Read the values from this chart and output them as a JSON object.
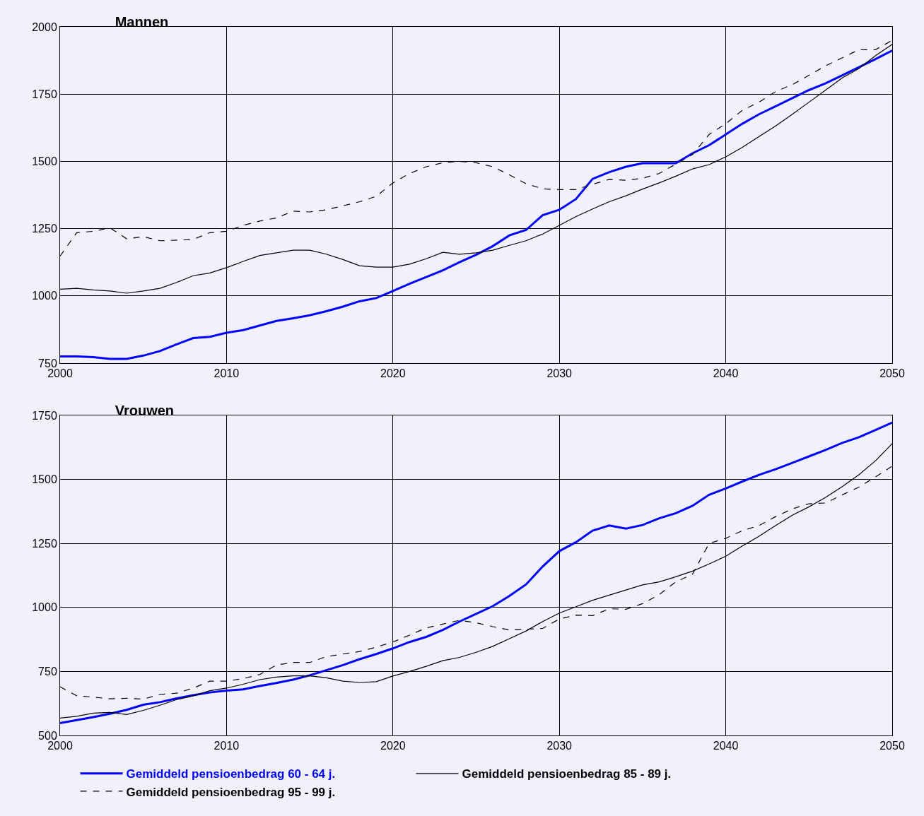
{
  "chart_data": [
    {
      "type": "line",
      "title": "Mannen",
      "x": [
        2000,
        2001,
        2002,
        2003,
        2004,
        2005,
        2006,
        2007,
        2008,
        2009,
        2010,
        2011,
        2012,
        2013,
        2014,
        2015,
        2016,
        2017,
        2018,
        2019,
        2020,
        2021,
        2022,
        2023,
        2024,
        2025,
        2026,
        2027,
        2028,
        2029,
        2030,
        2031,
        2032,
        2033,
        2034,
        2035,
        2036,
        2037,
        2038,
        2039,
        2040,
        2041,
        2042,
        2043,
        2044,
        2045,
        2046,
        2047,
        2048,
        2049,
        2050
      ],
      "series": [
        {
          "color": "#0000ff",
          "line_style": "solid",
          "values": [
            775,
            775,
            772,
            766,
            766,
            778,
            795,
            820,
            843,
            848,
            863,
            873,
            890,
            907,
            917,
            928,
            943,
            960,
            980,
            992,
            1018,
            1045,
            1070,
            1095,
            1125,
            1153,
            1185,
            1225,
            1245,
            1300,
            1320,
            1360,
            1435,
            1460,
            1480,
            1493,
            1493,
            1493,
            1530,
            1560,
            1600,
            1640,
            1675,
            1705,
            1735,
            1765,
            1790,
            1820,
            1850,
            1880,
            1912
          ]
        },
        {
          "color": "#000000",
          "line_style": "solid",
          "values": [
            1025,
            1028,
            1022,
            1018,
            1010,
            1018,
            1028,
            1050,
            1075,
            1085,
            1105,
            1128,
            1150,
            1160,
            1170,
            1170,
            1155,
            1135,
            1112,
            1107,
            1107,
            1118,
            1138,
            1162,
            1155,
            1160,
            1170,
            1188,
            1205,
            1230,
            1262,
            1295,
            1323,
            1350,
            1372,
            1397,
            1420,
            1445,
            1472,
            1488,
            1517,
            1552,
            1592,
            1632,
            1675,
            1720,
            1765,
            1810,
            1845,
            1893,
            1935
          ]
        },
        {
          "color": "#000000",
          "line_style": "dashed",
          "values": [
            1148,
            1235,
            1240,
            1253,
            1212,
            1220,
            1205,
            1207,
            1210,
            1235,
            1240,
            1262,
            1278,
            1290,
            1315,
            1312,
            1320,
            1335,
            1350,
            1370,
            1420,
            1455,
            1480,
            1495,
            1500,
            1495,
            1480,
            1450,
            1417,
            1398,
            1395,
            1395,
            1415,
            1433,
            1430,
            1437,
            1455,
            1490,
            1525,
            1600,
            1640,
            1690,
            1720,
            1760,
            1785,
            1820,
            1855,
            1885,
            1915,
            1915,
            1950
          ]
        }
      ],
      "xlim": [
        2000,
        2050
      ],
      "xticks": [
        2000,
        2010,
        2020,
        2030,
        2040,
        2050
      ],
      "ylim": [
        750,
        2000
      ],
      "yticks": [
        750,
        1000,
        1250,
        1500,
        1750,
        2000
      ],
      "grid": true,
      "legend": false
    },
    {
      "type": "line",
      "title": "Vrouwen",
      "x": [
        2000,
        2001,
        2002,
        2003,
        2004,
        2005,
        2006,
        2007,
        2008,
        2009,
        2010,
        2011,
        2012,
        2013,
        2014,
        2015,
        2016,
        2017,
        2018,
        2019,
        2020,
        2021,
        2022,
        2023,
        2024,
        2025,
        2026,
        2027,
        2028,
        2029,
        2030,
        2031,
        2032,
        2033,
        2034,
        2035,
        2036,
        2037,
        2038,
        2039,
        2040,
        2041,
        2042,
        2043,
        2044,
        2045,
        2046,
        2047,
        2048,
        2049,
        2050
      ],
      "series": [
        {
          "name": "Gemiddeld pensioenbedrag 60 - 64 j.",
          "color": "#0000ff",
          "line_style": "solid",
          "values": [
            548,
            560,
            572,
            585,
            600,
            620,
            630,
            645,
            657,
            668,
            675,
            680,
            693,
            705,
            718,
            735,
            755,
            775,
            798,
            818,
            840,
            865,
            885,
            912,
            945,
            975,
            1005,
            1045,
            1090,
            1160,
            1220,
            1255,
            1300,
            1320,
            1308,
            1322,
            1348,
            1368,
            1397,
            1440,
            1465,
            1492,
            1518,
            1540,
            1565,
            1590,
            1615,
            1643,
            1665,
            1693,
            1722
          ]
        },
        {
          "name": "Gemiddeld pensioenbedrag 85 - 89 j.",
          "color": "#000000",
          "line_style": "solid",
          "values": [
            568,
            575,
            587,
            590,
            582,
            598,
            618,
            640,
            655,
            675,
            685,
            700,
            718,
            728,
            733,
            733,
            725,
            712,
            707,
            710,
            732,
            750,
            770,
            792,
            805,
            825,
            848,
            878,
            908,
            945,
            978,
            1003,
            1028,
            1048,
            1068,
            1088,
            1100,
            1120,
            1142,
            1170,
            1200,
            1240,
            1278,
            1320,
            1360,
            1393,
            1430,
            1472,
            1518,
            1573,
            1640
          ]
        },
        {
          "name": "Gemiddeld pensioenbedrag 95 - 99 j.",
          "color": "#000000",
          "line_style": "dashed",
          "values": [
            690,
            655,
            650,
            643,
            645,
            642,
            660,
            665,
            685,
            712,
            712,
            722,
            738,
            775,
            785,
            785,
            808,
            818,
            828,
            845,
            865,
            892,
            920,
            935,
            950,
            940,
            925,
            912,
            915,
            918,
            955,
            970,
            968,
            995,
            993,
            1015,
            1050,
            1100,
            1130,
            1250,
            1270,
            1300,
            1320,
            1355,
            1385,
            1405,
            1408,
            1440,
            1470,
            1510,
            1552
          ]
        }
      ],
      "xlim": [
        2000,
        2050
      ],
      "xticks": [
        2000,
        2010,
        2020,
        2030,
        2040,
        2050
      ],
      "ylim": [
        500,
        1750
      ],
      "yticks": [
        500,
        750,
        1000,
        1250,
        1500,
        1750
      ],
      "grid": true,
      "legend": "bottom"
    }
  ]
}
